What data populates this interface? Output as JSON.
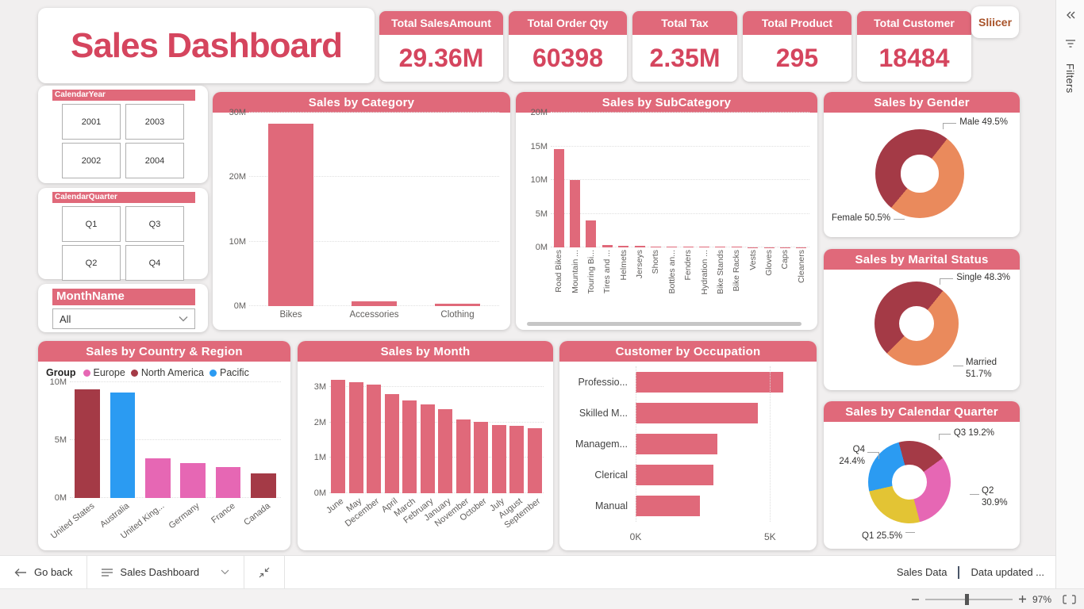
{
  "title": "Sales Dashboard",
  "slicer_button": {
    "label": "Sliicer"
  },
  "kpis": [
    {
      "label": "Total SalesAmount",
      "value": "29.36M"
    },
    {
      "label": "Total Order Qty",
      "value": "60398"
    },
    {
      "label": "Total Tax",
      "value": "2.35M"
    },
    {
      "label": "Total Product",
      "value": "295"
    },
    {
      "label": "Total Customer",
      "value": "18484"
    }
  ],
  "slicers": {
    "year": {
      "header": "CalendarYear",
      "options": [
        "2001",
        "2003",
        "2002",
        "2004"
      ]
    },
    "quarter": {
      "header": "CalendarQuarter",
      "options": [
        "Q1",
        "Q3",
        "Q2",
        "Q4"
      ]
    },
    "month": {
      "header": "MonthName",
      "value": "All"
    }
  },
  "filters_pane": {
    "label": "Filters"
  },
  "bottom_bar": {
    "go_back": "Go back",
    "page_name": "Sales Dashboard",
    "dataset_label": "Sales Data",
    "data_updated": "Data updated ...",
    "zoom_level": "97%"
  },
  "colors": {
    "accent_red": "#e0697a",
    "value_red": "#d5455e",
    "dark_red": "#a43a46",
    "orange": "#ea8a5c",
    "pink": "#e667b4",
    "blue": "#2b9bf2",
    "yellow": "#e3c434"
  },
  "chart_data": [
    {
      "id": "category",
      "type": "bar",
      "title": "Sales by Category",
      "categories": [
        "Bikes",
        "Accessories",
        "Clothing"
      ],
      "values": [
        28.3,
        0.8,
        0.4
      ],
      "unit": "M",
      "ylim": [
        0,
        30
      ],
      "yticks": [
        0,
        10,
        20,
        30
      ],
      "bar_color": "#e0697a",
      "grid": true
    },
    {
      "id": "subcategory",
      "type": "bar",
      "title": "Sales by SubCategory",
      "categories": [
        "Road Bikes",
        "Mountain ...",
        "Touring Bi...",
        "Tires and ...",
        "Helmets",
        "Jerseys",
        "Shorts",
        "Bottles an...",
        "Fenders",
        "Hydration ...",
        "Bike Stands",
        "Bike Racks",
        "Vests",
        "Gloves",
        "Caps",
        "Cleaners"
      ],
      "values": [
        14.6,
        10.0,
        4.0,
        0.3,
        0.28,
        0.22,
        0.12,
        0.1,
        0.08,
        0.08,
        0.07,
        0.07,
        0.06,
        0.05,
        0.04,
        0.03
      ],
      "unit": "M",
      "ylim": [
        0,
        20
      ],
      "yticks": [
        0,
        5,
        10,
        15,
        20
      ],
      "bar_color": "#e0697a",
      "grid": true,
      "has_hscrollbar": true
    },
    {
      "id": "gender",
      "type": "pie",
      "title": "Sales by Gender",
      "slices": [
        {
          "name": "Male",
          "pct": 49.5,
          "color": "#a43a46"
        },
        {
          "name": "Female",
          "pct": 50.5,
          "color": "#ea8a5c"
        }
      ],
      "start_angle": 220
    },
    {
      "id": "marital",
      "type": "pie",
      "title": "Sales by Marital Status",
      "slices": [
        {
          "name": "Single",
          "pct": 48.3,
          "color": "#a43a46"
        },
        {
          "name": "Married",
          "pct": 51.7,
          "color": "#ea8a5c"
        }
      ],
      "start_angle": 225
    },
    {
      "id": "country",
      "type": "bar",
      "title": "Sales by Country & Region",
      "legend_title": "Group",
      "legend": [
        {
          "name": "Europe",
          "color": "#e667b4"
        },
        {
          "name": "North America",
          "color": "#a43a46"
        },
        {
          "name": "Pacific",
          "color": "#2b9bf2"
        }
      ],
      "categories": [
        "United States",
        "Australia",
        "United King...",
        "Germany",
        "France",
        "Canada"
      ],
      "values": [
        9.4,
        9.1,
        3.4,
        3.0,
        2.7,
        2.1
      ],
      "bar_colors": [
        "#a43a46",
        "#2b9bf2",
        "#e667b4",
        "#e667b4",
        "#e667b4",
        "#a43a46"
      ],
      "unit": "M",
      "ylim": [
        0,
        10
      ],
      "yticks": [
        0,
        5,
        10
      ],
      "grid": true
    },
    {
      "id": "month",
      "type": "bar",
      "title": "Sales by Month",
      "categories": [
        "June",
        "May",
        "December",
        "April",
        "March",
        "February",
        "January",
        "November",
        "October",
        "July",
        "August",
        "September"
      ],
      "values": [
        3.2,
        3.13,
        3.07,
        2.8,
        2.63,
        2.52,
        2.38,
        2.09,
        2.02,
        1.93,
        1.91,
        1.83
      ],
      "unit": "M",
      "ylim": [
        0,
        3.45
      ],
      "yticks": [
        0,
        1,
        2,
        3
      ],
      "bar_color": "#e0697a",
      "grid": true
    },
    {
      "id": "occupation",
      "type": "bar-horizontal",
      "title": "Customer by Occupation",
      "categories": [
        "Professio...",
        "Skilled M...",
        "Managem...",
        "Clerical",
        "Manual"
      ],
      "values": [
        5.5,
        4.55,
        3.05,
        2.9,
        2.4
      ],
      "unit": "K",
      "xlim": [
        0,
        6.2
      ],
      "xticks": [
        0,
        5
      ],
      "bar_color": "#e0697a",
      "grid": true
    },
    {
      "id": "cquarter",
      "type": "pie",
      "title": "Sales by Calendar Quarter",
      "slices": [
        {
          "name": "Q3",
          "pct": 19.2,
          "color": "#a43a46"
        },
        {
          "name": "Q2",
          "pct": 30.9,
          "color": "#e667b4"
        },
        {
          "name": "Q1",
          "pct": 25.5,
          "color": "#e3c434"
        },
        {
          "name": "Q4",
          "pct": 24.4,
          "color": "#2b9bf2"
        }
      ],
      "start_angle": -15
    }
  ]
}
